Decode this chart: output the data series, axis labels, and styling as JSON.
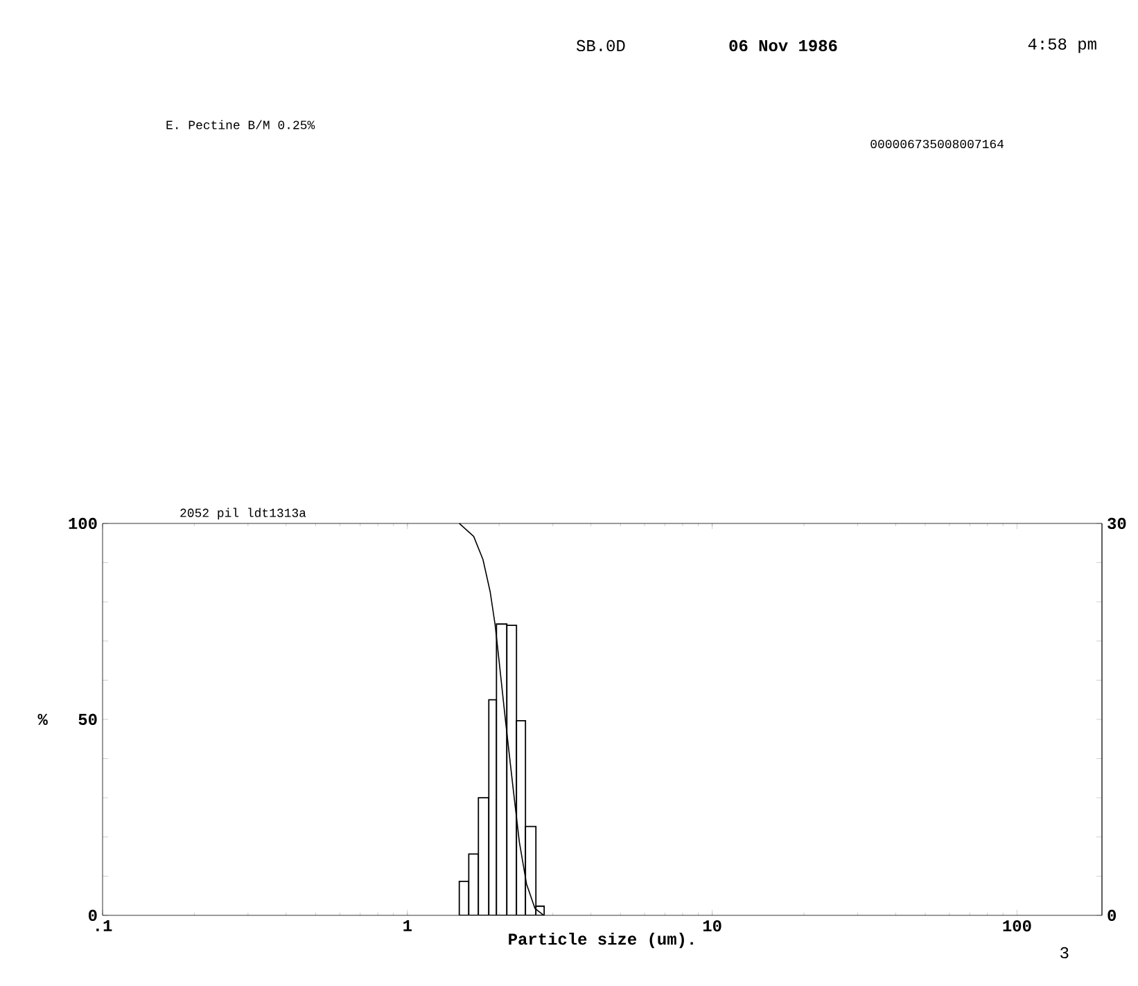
{
  "chart_data": {
    "type": "histogram",
    "title": "E. Pectine B/M 0.25%",
    "subtitle": "000006735008007164",
    "xlabel": "Particle size (um).",
    "ylabel": "%",
    "annotations": [
      "SB.0D",
      "06 Nov 1986",
      "4:58 pm",
      "2052 pil ldt1313a",
      "3"
    ],
    "xlim": [
      0.1,
      190
    ],
    "log": "x",
    "xticks": [
      {
        "value": 0.1,
        "label": ".1"
      },
      1,
      10,
      100
    ],
    "ylim": [
      0,
      100
    ],
    "yticks": [
      0,
      {
        "value": 10,
        "label": null
      },
      {
        "value": 20,
        "label": null
      },
      {
        "value": 30,
        "label": null
      },
      {
        "value": 40,
        "label": null
      },
      50,
      {
        "value": 60,
        "label": null
      },
      {
        "value": 70,
        "label": null
      },
      {
        "value": 80,
        "label": null
      },
      {
        "value": 90,
        "label": null
      },
      100
    ],
    "y2lim": [
      0,
      30
    ],
    "y2ticks": [
      0,
      {
        "value": 3,
        "label": null
      },
      {
        "value": 6,
        "label": null
      },
      {
        "value": 9,
        "label": null
      },
      {
        "value": 12,
        "label": null
      },
      {
        "value": 15,
        "label": null
      },
      {
        "value": 18,
        "label": null
      },
      {
        "value": 21,
        "label": null
      },
      {
        "value": 24,
        "label": null
      },
      {
        "value": 27,
        "label": null
      },
      30
    ],
    "grid": false,
    "series": [
      {
        "axis": "y2",
        "color": "#000000",
        "bins": [
          1.48,
          1.59,
          1.71,
          1.85,
          1.96,
          2.12,
          2.28,
          2.44,
          2.64,
          2.81
        ],
        "values": [
          2.6,
          4.7,
          9.0,
          16.5,
          22.3,
          22.2,
          14.9,
          6.8,
          0.7
        ]
      },
      {
        "type": "line",
        "color": "#000000",
        "marker": "none",
        "line_style": "solid",
        "x": [
          1.48,
          1.65,
          1.77,
          1.87,
          1.94,
          2.0,
          2.1,
          2.22,
          2.33,
          2.46,
          2.62,
          2.8
        ],
        "values": [
          100,
          96.7,
          90.8,
          82.5,
          74.2,
          64.8,
          49.4,
          32.8,
          18.7,
          8.0,
          1.8,
          0
        ]
      }
    ]
  }
}
